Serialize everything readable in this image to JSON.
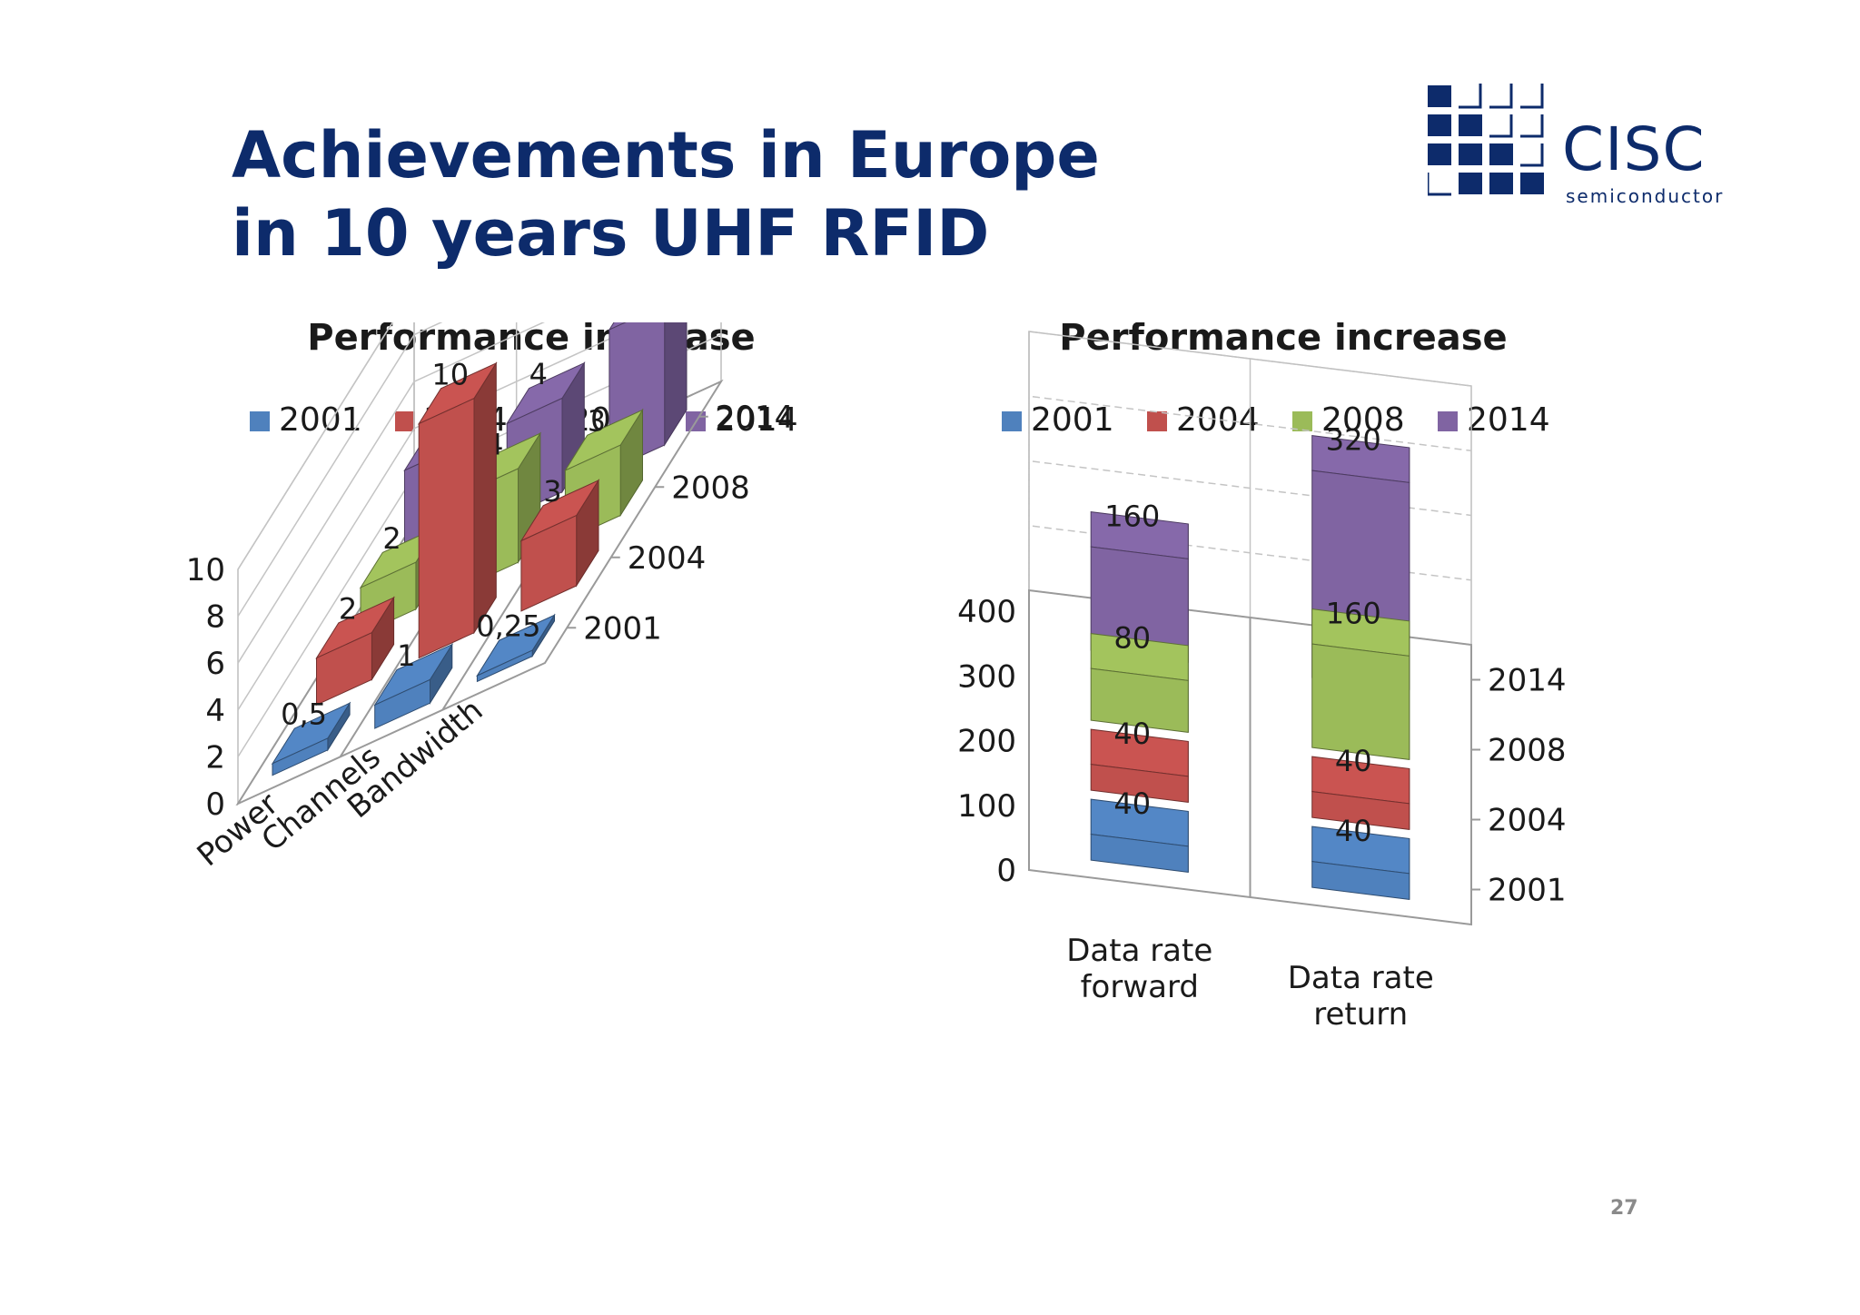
{
  "slide": {
    "title_line1": "Achievements in Europe",
    "title_line2": "in 10 years UHF RFID",
    "page_number": "27"
  },
  "logo": {
    "name": "CISC",
    "tagline": "semiconductor",
    "color": "#0d2b6b"
  },
  "series_colors": {
    "2001": "#4f81bd",
    "2004": "#c0504d",
    "2008": "#9bbb59",
    "2014": "#8064a2"
  },
  "chart_data": [
    {
      "type": "bar",
      "style": "3d",
      "title": "Performance increase",
      "legend_position": "top",
      "categories": [
        "Power",
        "Channels",
        "Bandwidth"
      ],
      "depth_labels": [
        "2001",
        "2004",
        "2008",
        "2014"
      ],
      "yticks": [
        "0",
        "2",
        "4",
        "6",
        "8",
        "10"
      ],
      "ylim": [
        0,
        10
      ],
      "grid": true,
      "series": [
        {
          "name": "2001",
          "values": [
            0.5,
            1,
            0.25
          ],
          "labels": [
            "0,5",
            "1",
            "0,25"
          ]
        },
        {
          "name": "2004",
          "values": [
            2,
            10,
            3
          ],
          "labels": [
            "2",
            "10",
            "3"
          ]
        },
        {
          "name": "2008",
          "values": [
            2,
            4,
            3
          ],
          "labels": [
            "2",
            "4",
            "3"
          ]
        },
        {
          "name": "2014",
          "values": [
            4,
            4,
            6
          ],
          "labels": [
            "4",
            "4",
            "6"
          ]
        }
      ]
    },
    {
      "type": "bar",
      "style": "3d",
      "title": "Performance increase",
      "legend_position": "top",
      "categories": [
        "Data rate forward",
        "Data rate return"
      ],
      "depth_labels": [
        "2001",
        "2004",
        "2008",
        "2014"
      ],
      "yticks": [
        "0",
        "100",
        "200",
        "300",
        "400"
      ],
      "ylim": [
        0,
        400
      ],
      "grid": true,
      "series": [
        {
          "name": "2001",
          "values": [
            40,
            40
          ],
          "labels": [
            "40",
            "40"
          ]
        },
        {
          "name": "2004",
          "values": [
            40,
            40
          ],
          "labels": [
            "40",
            "40"
          ]
        },
        {
          "name": "2008",
          "values": [
            80,
            160
          ],
          "labels": [
            "80",
            "160"
          ]
        },
        {
          "name": "2014",
          "values": [
            160,
            320
          ],
          "labels": [
            "160",
            "320"
          ]
        }
      ]
    }
  ]
}
